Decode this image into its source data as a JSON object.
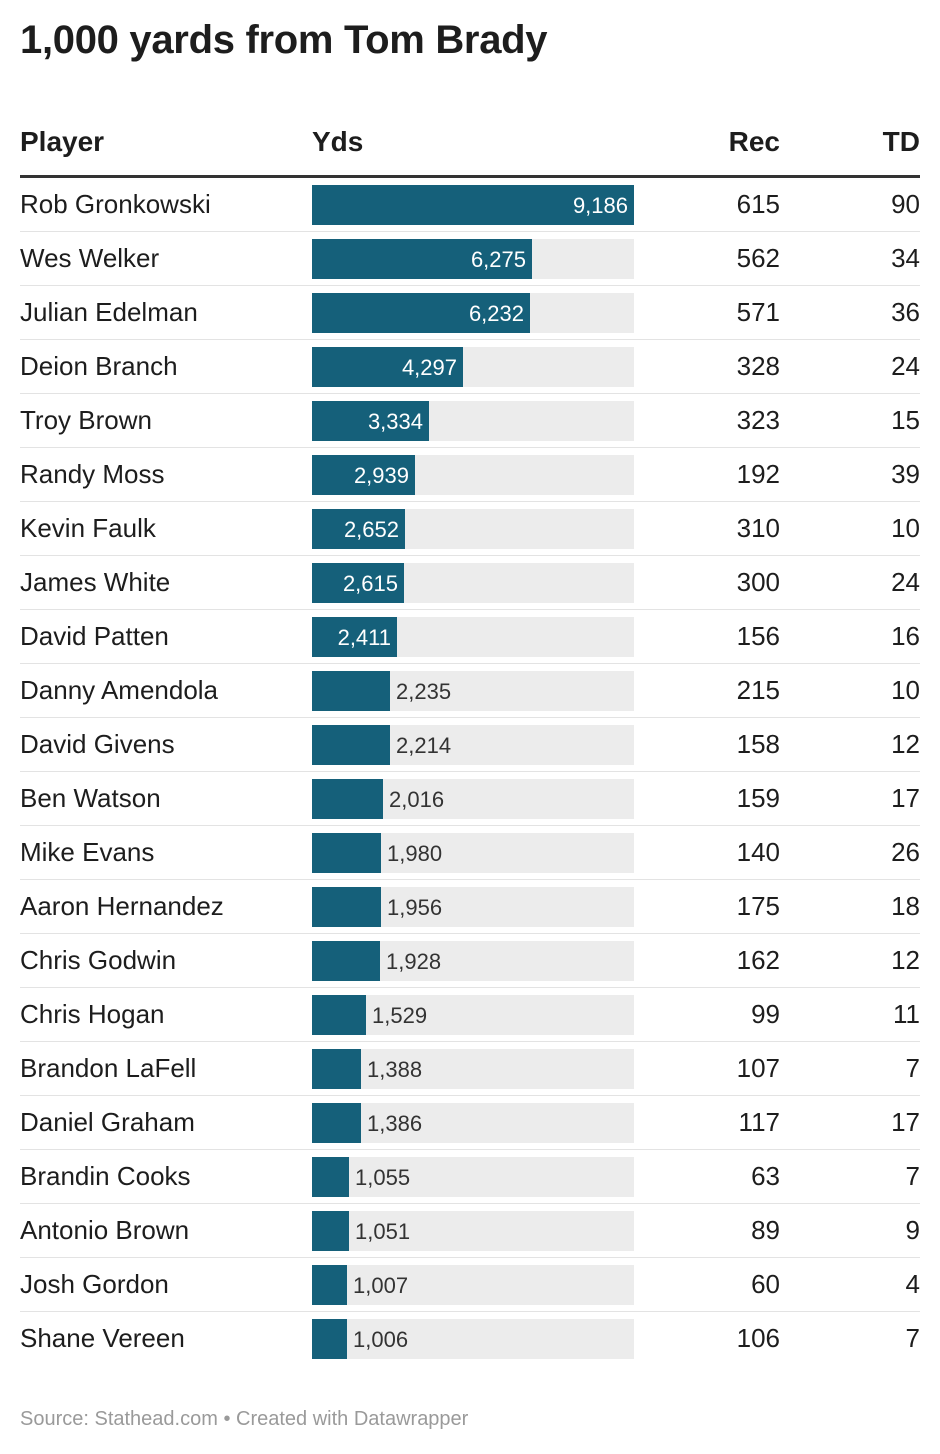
{
  "title": "1,000 yards from Tom Brady",
  "columns": {
    "player": "Player",
    "yds": "Yds",
    "rec": "Rec",
    "td": "TD"
  },
  "footer": "Source: Stathead.com • Created with Datawrapper",
  "colors": {
    "bar": "#15607a",
    "track": "#ececec"
  },
  "chart_data": {
    "type": "table",
    "yds_max": 9186,
    "rows": [
      {
        "player": "Rob Gronkowski",
        "yds": 9186,
        "yds_label": "9,186",
        "rec": "615",
        "td": "90"
      },
      {
        "player": "Wes Welker",
        "yds": 6275,
        "yds_label": "6,275",
        "rec": "562",
        "td": "34"
      },
      {
        "player": "Julian Edelman",
        "yds": 6232,
        "yds_label": "6,232",
        "rec": "571",
        "td": "36"
      },
      {
        "player": "Deion Branch",
        "yds": 4297,
        "yds_label": "4,297",
        "rec": "328",
        "td": "24"
      },
      {
        "player": "Troy Brown",
        "yds": 3334,
        "yds_label": "3,334",
        "rec": "323",
        "td": "15"
      },
      {
        "player": "Randy Moss",
        "yds": 2939,
        "yds_label": "2,939",
        "rec": "192",
        "td": "39"
      },
      {
        "player": "Kevin Faulk",
        "yds": 2652,
        "yds_label": "2,652",
        "rec": "310",
        "td": "10"
      },
      {
        "player": "James White",
        "yds": 2615,
        "yds_label": "2,615",
        "rec": "300",
        "td": "24"
      },
      {
        "player": "David Patten",
        "yds": 2411,
        "yds_label": "2,411",
        "rec": "156",
        "td": "16"
      },
      {
        "player": "Danny Amendola",
        "yds": 2235,
        "yds_label": "2,235",
        "rec": "215",
        "td": "10"
      },
      {
        "player": "David Givens",
        "yds": 2214,
        "yds_label": "2,214",
        "rec": "158",
        "td": "12"
      },
      {
        "player": "Ben Watson",
        "yds": 2016,
        "yds_label": "2,016",
        "rec": "159",
        "td": "17"
      },
      {
        "player": "Mike Evans",
        "yds": 1980,
        "yds_label": "1,980",
        "rec": "140",
        "td": "26"
      },
      {
        "player": "Aaron Hernandez",
        "yds": 1956,
        "yds_label": "1,956",
        "rec": "175",
        "td": "18"
      },
      {
        "player": "Chris Godwin",
        "yds": 1928,
        "yds_label": "1,928",
        "rec": "162",
        "td": "12"
      },
      {
        "player": "Chris Hogan",
        "yds": 1529,
        "yds_label": "1,529",
        "rec": "99",
        "td": "11"
      },
      {
        "player": "Brandon LaFell",
        "yds": 1388,
        "yds_label": "1,388",
        "rec": "107",
        "td": "7"
      },
      {
        "player": "Daniel Graham",
        "yds": 1386,
        "yds_label": "1,386",
        "rec": "117",
        "td": "17"
      },
      {
        "player": "Brandin Cooks",
        "yds": 1055,
        "yds_label": "1,055",
        "rec": "63",
        "td": "7"
      },
      {
        "player": "Antonio Brown",
        "yds": 1051,
        "yds_label": "1,051",
        "rec": "89",
        "td": "9"
      },
      {
        "player": "Josh Gordon",
        "yds": 1007,
        "yds_label": "1,007",
        "rec": "60",
        "td": "4"
      },
      {
        "player": "Shane Vereen",
        "yds": 1006,
        "yds_label": "1,006",
        "rec": "106",
        "td": "7"
      }
    ]
  }
}
